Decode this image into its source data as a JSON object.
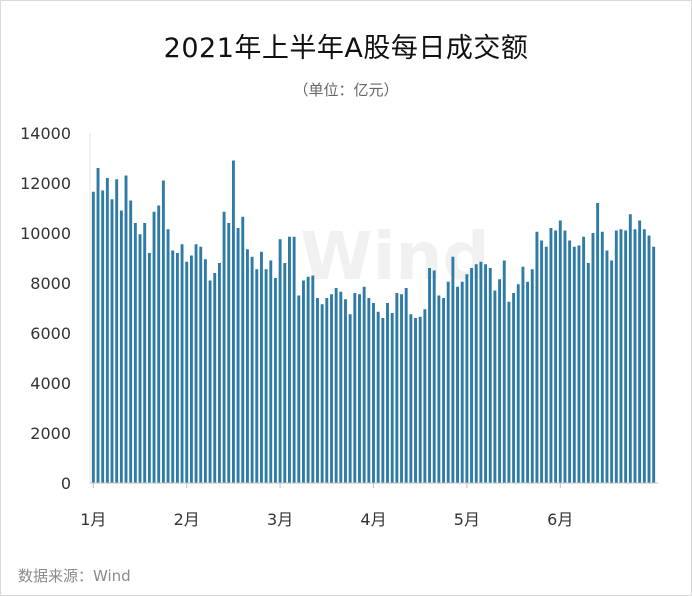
{
  "title": "2021年上半年A股每日成交额",
  "subtitle": "（单位：亿元）",
  "source": "数据来源：Wind",
  "watermark": "Wind",
  "colors": {
    "bar": "#2e7ca6",
    "axis": "#bfbfbf"
  },
  "chart_data": {
    "type": "bar",
    "title": "2021年上半年A股每日成交额",
    "ylabel": "（单位：亿元）",
    "ylim": [
      0,
      14000
    ],
    "yticks": [
      "0",
      "2000",
      "4000",
      "6000",
      "8000",
      "10000",
      "12000",
      "14000"
    ],
    "xticks": [
      {
        "label": "1月",
        "index": 0
      },
      {
        "label": "2月",
        "index": 20
      },
      {
        "label": "3月",
        "index": 40
      },
      {
        "label": "4月",
        "index": 60
      },
      {
        "label": "5月",
        "index": 80
      },
      {
        "label": "6月",
        "index": 100
      }
    ],
    "grid": false,
    "series": [
      {
        "values": [
          11650,
          12600,
          11700,
          12200,
          11350,
          12150,
          10900,
          12300,
          11300,
          10400,
          9950,
          10400,
          9200,
          10850,
          11100,
          12100,
          10150,
          9300,
          9200,
          9550,
          8850,
          9100,
          9550,
          9450,
          8950,
          8100,
          8400,
          8800,
          10850,
          10400,
          12900,
          10200,
          10650,
          9350,
          9050,
          8550,
          9250,
          8550,
          8900,
          8200,
          9750,
          8800,
          9850,
          9850,
          7500,
          8100,
          8250,
          8300,
          7400,
          7150,
          7400,
          7550,
          7800,
          7650,
          7350,
          6750,
          7600,
          7550,
          7850,
          7400,
          7200,
          6850,
          6600,
          7200,
          6800,
          7600,
          7550,
          7800,
          6750,
          6600,
          6650,
          6950,
          8600,
          8500,
          7500,
          7400,
          8050,
          9050,
          7850,
          8050,
          8350,
          8600,
          8750,
          8850,
          8750,
          8600,
          7700,
          8150,
          8900,
          7250,
          7600,
          7950,
          8650,
          8050,
          8550,
          10050,
          9700,
          9450,
          10200,
          10100,
          10500,
          10100,
          9700,
          9450,
          9500,
          9850,
          8800,
          10000,
          11200,
          10050,
          9300,
          8900,
          10100,
          10150,
          10100,
          10750,
          10150,
          10500,
          10150,
          9900,
          9450
        ]
      }
    ]
  }
}
